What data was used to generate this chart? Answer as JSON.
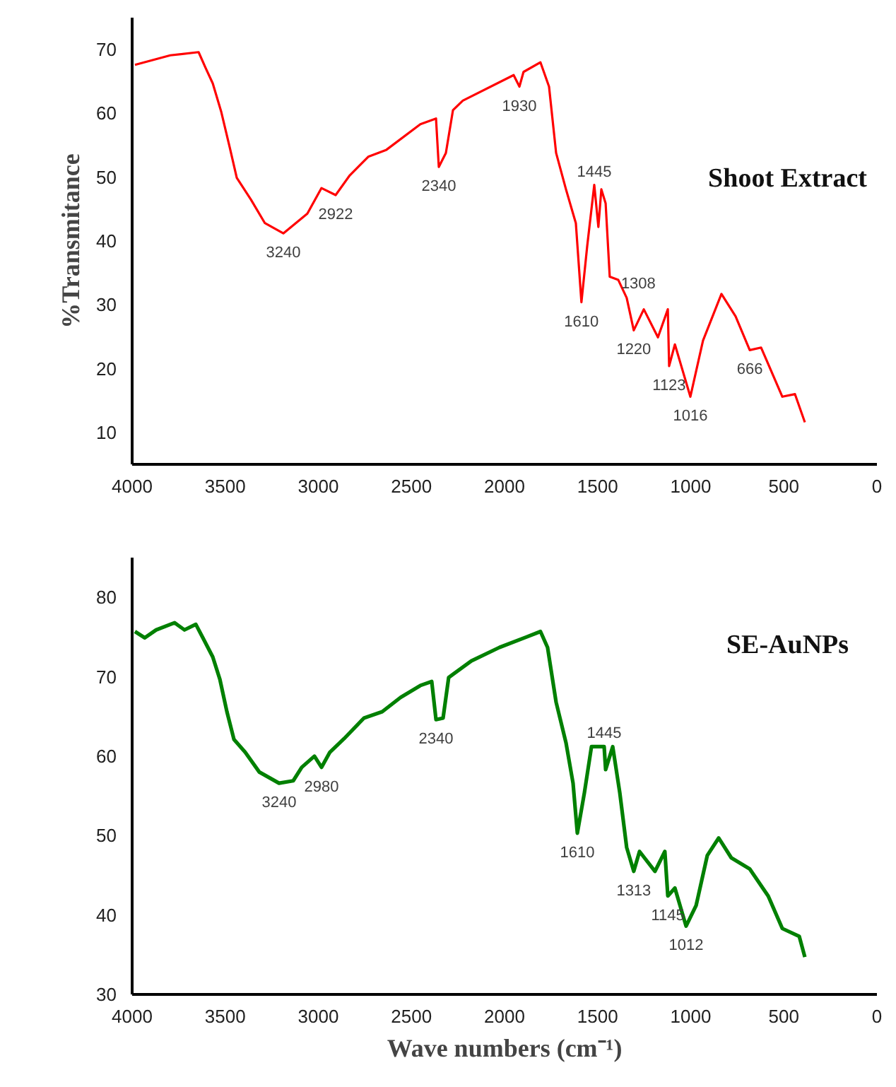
{
  "chart_data": [
    {
      "type": "line",
      "ylabel": "%Transmitance",
      "xlim": [
        4000,
        0
      ],
      "ylim": [
        5,
        75
      ],
      "xticks": [
        4000,
        3500,
        3000,
        2500,
        2000,
        1500,
        1000,
        500,
        0
      ],
      "yticks": [
        10,
        20,
        30,
        40,
        50,
        60,
        70
      ],
      "grid": false,
      "series": [
        {
          "name": "Shoot Extract",
          "color": "#ff0000",
          "x": [
            3985,
            3795,
            3643,
            3605,
            3567,
            3522,
            3476,
            3438,
            3362,
            3287,
            3188,
            3059,
            2983,
            2907,
            2831,
            2732,
            2634,
            2452,
            2368,
            2353,
            2315,
            2277,
            2224,
            1951,
            1920,
            1898,
            1807,
            1761,
            1723,
            1670,
            1617,
            1587,
            1556,
            1518,
            1496,
            1480,
            1457,
            1435,
            1389,
            1344,
            1306,
            1252,
            1176,
            1123,
            1116,
            1085,
            1002,
            934,
            835,
            759,
            683,
            622,
            508,
            440,
            387
          ],
          "values": [
            67.6,
            69.1,
            69.6,
            67.1,
            64.7,
            60.3,
            54.7,
            49.9,
            46.5,
            42.8,
            41.2,
            44.3,
            48.3,
            47.2,
            50.3,
            53.2,
            54.3,
            58.3,
            59.2,
            51.6,
            53.8,
            60.5,
            62.0,
            66.0,
            64.2,
            66.5,
            68.0,
            64.2,
            53.8,
            48.1,
            42.8,
            30.4,
            39.2,
            48.8,
            42.2,
            48.1,
            45.9,
            34.4,
            33.9,
            31.1,
            26.0,
            29.3,
            24.9,
            29.3,
            20.4,
            23.8,
            15.6,
            24.4,
            31.7,
            28.2,
            22.9,
            23.3,
            15.6,
            16.0,
            11.6
          ]
        }
      ],
      "annotations": [
        {
          "text": "3240",
          "x": 3188,
          "y": 41.2
        },
        {
          "text": "2922",
          "x": 2907,
          "y": 47.2
        },
        {
          "text": "2340",
          "x": 2353,
          "y": 51.6
        },
        {
          "text": "1930",
          "x": 1920,
          "y": 64.2
        },
        {
          "text": "1445",
          "x": 1518,
          "y": 48.8
        },
        {
          "text": "1308",
          "x": 1435,
          "y": 34.4
        },
        {
          "text": "1610",
          "x": 1587,
          "y": 30.4
        },
        {
          "text": "1220",
          "x": 1306,
          "y": 26.0
        },
        {
          "text": "1123",
          "x": 1116,
          "y": 20.4
        },
        {
          "text": "1016",
          "x": 1002,
          "y": 15.6
        },
        {
          "text": "666",
          "x": 683,
          "y": 22.9
        }
      ]
    },
    {
      "type": "line",
      "xlabel": "Wave numbers (cm⁻¹)",
      "xlim": [
        4000,
        0
      ],
      "ylim": [
        30,
        85
      ],
      "xticks": [
        4000,
        3500,
        3000,
        2500,
        2000,
        1500,
        1000,
        500,
        0
      ],
      "yticks": [
        30,
        40,
        50,
        60,
        70,
        80
      ],
      "grid": false,
      "series": [
        {
          "name": "SE-AuNPs",
          "color": "#008000",
          "x": [
            3985,
            3932,
            3871,
            3772,
            3719,
            3658,
            3620,
            3567,
            3529,
            3491,
            3453,
            3393,
            3317,
            3211,
            3135,
            3089,
            3021,
            2983,
            2938,
            2862,
            2755,
            2657,
            2558,
            2452,
            2391,
            2368,
            2330,
            2300,
            2277,
            2178,
            2027,
            1883,
            1807,
            1769,
            1723,
            1670,
            1632,
            1609,
            1571,
            1533,
            1465,
            1457,
            1419,
            1381,
            1344,
            1306,
            1275,
            1192,
            1139,
            1123,
            1085,
            1025,
            971,
            911,
            850,
            782,
            683,
            584,
            508,
            417,
            387
          ],
          "values": [
            75.7,
            74.9,
            75.9,
            76.8,
            75.9,
            76.6,
            74.9,
            72.5,
            69.7,
            65.6,
            62.1,
            60.5,
            58.0,
            56.6,
            56.9,
            58.6,
            60.0,
            58.6,
            60.5,
            62.2,
            64.8,
            65.6,
            67.4,
            68.9,
            69.4,
            64.6,
            64.8,
            69.9,
            70.3,
            72.0,
            73.7,
            75.0,
            75.7,
            73.7,
            66.8,
            61.7,
            56.6,
            50.3,
            55.4,
            61.2,
            61.2,
            58.3,
            61.2,
            55.4,
            48.5,
            45.5,
            48.0,
            45.5,
            48.0,
            42.4,
            43.4,
            38.6,
            41.2,
            47.5,
            49.7,
            47.2,
            45.8,
            42.4,
            38.3,
            37.3,
            34.7
          ]
        }
      ],
      "annotations": [
        {
          "text": "3240",
          "x": 3211,
          "y": 56.6
        },
        {
          "text": "2980",
          "x": 2983,
          "y": 58.6
        },
        {
          "text": "2340",
          "x": 2368,
          "y": 64.6
        },
        {
          "text": "1445",
          "x": 1465,
          "y": 61.2
        },
        {
          "text": "1610",
          "x": 1609,
          "y": 50.3
        },
        {
          "text": "1313",
          "x": 1306,
          "y": 45.5
        },
        {
          "text": "1145",
          "x": 1123,
          "y": 42.4
        },
        {
          "text": "1012",
          "x": 1025,
          "y": 38.6
        }
      ]
    }
  ]
}
